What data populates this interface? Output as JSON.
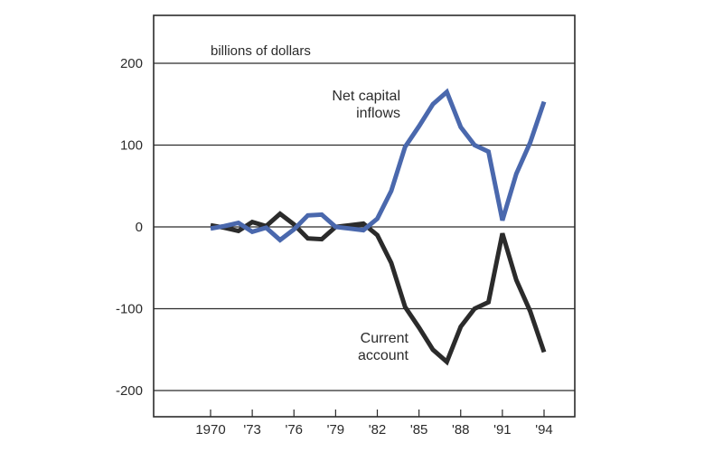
{
  "chart_data": {
    "type": "line",
    "title": "",
    "ylabel": "billions of dollars",
    "xlabel": "",
    "ylim": [
      -200,
      200
    ],
    "yticks": [
      200,
      100,
      0,
      -100,
      -200
    ],
    "ytick_labels": [
      "200",
      "100",
      "0",
      "-100",
      "-200"
    ],
    "xlim": [
      1970,
      1995
    ],
    "xticks": [
      1970,
      1973,
      1976,
      1979,
      1982,
      1985,
      1988,
      1991,
      1994
    ],
    "xtick_labels": [
      "1970",
      "'73",
      "'76",
      "'79",
      "'82",
      "'85",
      "'88",
      "'91",
      "'94"
    ],
    "grid": "horizontal",
    "x": [
      1970,
      1971,
      1972,
      1973,
      1974,
      1975,
      1976,
      1977,
      1978,
      1979,
      1980,
      1981,
      1982,
      1983,
      1984,
      1985,
      1986,
      1987,
      1988,
      1989,
      1990,
      1991,
      1992,
      1993,
      1994
    ],
    "series": [
      {
        "label": "Net capital\ninflows",
        "color": "#4a68ad",
        "values": [
          -2,
          1,
          5,
          -6,
          -1,
          -16,
          -3,
          14,
          15,
          0,
          -2,
          -4,
          10,
          44,
          98,
          123,
          150,
          165,
          122,
          100,
          92,
          8,
          65,
          103,
          153
        ]
      },
      {
        "label": "Current\naccount",
        "color": "#2b2b2b",
        "values": [
          2,
          -1,
          -5,
          6,
          1,
          16,
          3,
          -14,
          -15,
          0,
          2,
          4,
          -10,
          -44,
          -98,
          -123,
          -150,
          -165,
          -122,
          -100,
          -92,
          -8,
          -65,
          -103,
          -153
        ]
      }
    ]
  }
}
